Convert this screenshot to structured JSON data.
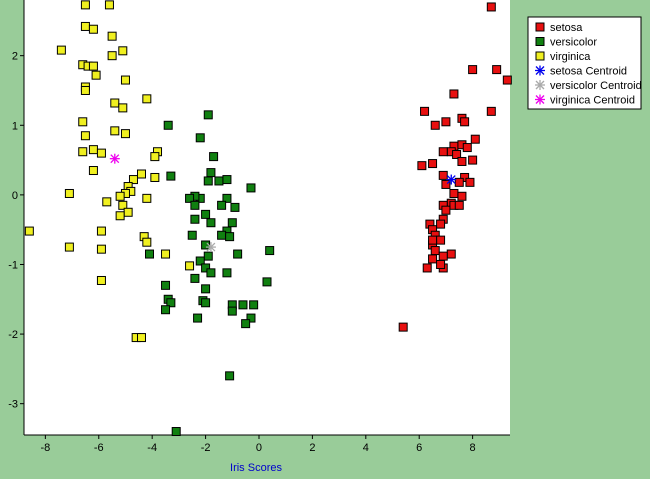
{
  "chart_data": {
    "type": "scatter",
    "title": "",
    "xlabel": "Iris Scores",
    "ylabel": "",
    "xlim": [
      -8.8,
      9.4
    ],
    "ylim": [
      -3.45,
      2.8
    ],
    "x_ticks": [
      -8,
      -6,
      -4,
      -2,
      0,
      2,
      4,
      6,
      8
    ],
    "y_ticks": [
      -3,
      -2,
      -1,
      0,
      1,
      2
    ],
    "grid": false,
    "legend_position": "top-right",
    "series": [
      {
        "name": "setosa",
        "color": "#e81010",
        "marker": "square",
        "points": [
          [
            8.7,
            2.7
          ],
          [
            8.0,
            1.8
          ],
          [
            8.9,
            1.8
          ],
          [
            9.3,
            1.65
          ],
          [
            7.3,
            1.45
          ],
          [
            6.2,
            1.2
          ],
          [
            8.7,
            1.2
          ],
          [
            7.0,
            1.05
          ],
          [
            6.6,
            1.0
          ],
          [
            7.6,
            1.1
          ],
          [
            7.7,
            1.05
          ],
          [
            8.1,
            0.8
          ],
          [
            7.3,
            0.7
          ],
          [
            7.6,
            0.72
          ],
          [
            7.8,
            0.68
          ],
          [
            7.2,
            0.62
          ],
          [
            7.4,
            0.58
          ],
          [
            6.9,
            0.62
          ],
          [
            8.0,
            0.5
          ],
          [
            6.1,
            0.42
          ],
          [
            6.5,
            0.45
          ],
          [
            7.6,
            0.48
          ],
          [
            6.9,
            0.28
          ],
          [
            7.7,
            0.25
          ],
          [
            7.5,
            0.18
          ],
          [
            7.9,
            0.18
          ],
          [
            7.0,
            0.15
          ],
          [
            7.3,
            0.02
          ],
          [
            7.6,
            -0.02
          ],
          [
            7.2,
            -0.12
          ],
          [
            7.3,
            -0.15
          ],
          [
            6.9,
            -0.15
          ],
          [
            7.5,
            -0.15
          ],
          [
            7.0,
            -0.22
          ],
          [
            6.9,
            -0.35
          ],
          [
            6.8,
            -0.42
          ],
          [
            6.4,
            -0.42
          ],
          [
            6.5,
            -0.5
          ],
          [
            6.6,
            -0.58
          ],
          [
            6.8,
            -0.65
          ],
          [
            6.5,
            -0.72
          ],
          [
            6.6,
            -0.8
          ],
          [
            7.2,
            -0.85
          ],
          [
            6.9,
            -0.88
          ],
          [
            6.5,
            -0.92
          ],
          [
            6.3,
            -1.05
          ],
          [
            6.9,
            -1.05
          ],
          [
            6.8,
            -1.0
          ],
          [
            5.4,
            -1.9
          ],
          [
            6.5,
            -0.65
          ]
        ]
      },
      {
        "name": "versicolor",
        "color": "#108010",
        "marker": "square",
        "points": [
          [
            -3.4,
            1.0
          ],
          [
            -1.9,
            1.15
          ],
          [
            -2.2,
            0.82
          ],
          [
            -1.7,
            0.55
          ],
          [
            -3.3,
            0.27
          ],
          [
            -1.8,
            0.32
          ],
          [
            -1.5,
            0.2
          ],
          [
            -1.2,
            0.22
          ],
          [
            -1.9,
            0.2
          ],
          [
            -0.3,
            0.1
          ],
          [
            -2.2,
            -0.05
          ],
          [
            -2.4,
            -0.02
          ],
          [
            -2.6,
            -0.05
          ],
          [
            -1.2,
            -0.05
          ],
          [
            -2.4,
            -0.15
          ],
          [
            -1.4,
            -0.15
          ],
          [
            -2.0,
            -0.28
          ],
          [
            -0.9,
            -0.18
          ],
          [
            -2.4,
            -0.35
          ],
          [
            -1.8,
            -0.4
          ],
          [
            -1.0,
            -0.4
          ],
          [
            -1.2,
            -0.52
          ],
          [
            -1.4,
            -0.58
          ],
          [
            -2.5,
            -0.58
          ],
          [
            -1.1,
            -0.6
          ],
          [
            -2.0,
            -0.72
          ],
          [
            0.4,
            -0.8
          ],
          [
            -0.8,
            -0.85
          ],
          [
            -1.9,
            -0.88
          ],
          [
            -2.2,
            -0.95
          ],
          [
            -2.0,
            -1.05
          ],
          [
            -1.8,
            -1.12
          ],
          [
            -1.2,
            -1.12
          ],
          [
            -4.1,
            -0.85
          ],
          [
            -2.4,
            -1.2
          ],
          [
            0.3,
            -1.25
          ],
          [
            -3.5,
            -1.3
          ],
          [
            -2.0,
            -1.35
          ],
          [
            -3.4,
            -1.5
          ],
          [
            -3.3,
            -1.55
          ],
          [
            -2.1,
            -1.52
          ],
          [
            -2.0,
            -1.55
          ],
          [
            -1.0,
            -1.58
          ],
          [
            -0.6,
            -1.58
          ],
          [
            -0.2,
            -1.58
          ],
          [
            -3.5,
            -1.65
          ],
          [
            -1.0,
            -1.67
          ],
          [
            -2.3,
            -1.77
          ],
          [
            -0.3,
            -1.77
          ],
          [
            -0.5,
            -1.85
          ],
          [
            -1.1,
            -2.6
          ],
          [
            -3.1,
            -3.4
          ]
        ]
      },
      {
        "name": "virginica",
        "color": "#f0f020",
        "marker": "square",
        "points": [
          [
            -6.5,
            2.73
          ],
          [
            -5.6,
            2.73
          ],
          [
            -6.5,
            2.42
          ],
          [
            -6.2,
            2.38
          ],
          [
            -5.5,
            2.28
          ],
          [
            -7.4,
            2.08
          ],
          [
            -5.1,
            2.07
          ],
          [
            -5.5,
            2.0
          ],
          [
            -6.6,
            1.87
          ],
          [
            -6.4,
            1.85
          ],
          [
            -6.2,
            1.85
          ],
          [
            -6.1,
            1.72
          ],
          [
            -5.0,
            1.65
          ],
          [
            -6.5,
            1.55
          ],
          [
            -6.5,
            1.5
          ],
          [
            -4.2,
            1.38
          ],
          [
            -5.4,
            1.32
          ],
          [
            -5.1,
            1.25
          ],
          [
            -6.6,
            1.05
          ],
          [
            -5.4,
            0.92
          ],
          [
            -5.0,
            0.88
          ],
          [
            -6.5,
            0.85
          ],
          [
            -6.2,
            0.65
          ],
          [
            -3.8,
            0.62
          ],
          [
            -6.6,
            0.62
          ],
          [
            -5.9,
            0.6
          ],
          [
            -3.9,
            0.55
          ],
          [
            -6.2,
            0.35
          ],
          [
            -4.4,
            0.3
          ],
          [
            -3.9,
            0.25
          ],
          [
            -4.7,
            0.22
          ],
          [
            -4.9,
            0.12
          ],
          [
            -4.8,
            0.05
          ],
          [
            -7.1,
            0.02
          ],
          [
            -5.0,
            0.02
          ],
          [
            -5.2,
            -0.02
          ],
          [
            -4.2,
            -0.05
          ],
          [
            -5.7,
            -0.1
          ],
          [
            -5.1,
            -0.15
          ],
          [
            -4.9,
            -0.25
          ],
          [
            -5.2,
            -0.3
          ],
          [
            -5.9,
            -0.52
          ],
          [
            -4.3,
            -0.6
          ],
          [
            -4.2,
            -0.68
          ],
          [
            -7.1,
            -0.75
          ],
          [
            -5.9,
            -0.78
          ],
          [
            -3.5,
            -0.85
          ],
          [
            -2.6,
            -1.02
          ],
          [
            -5.9,
            -1.23
          ],
          [
            -8.6,
            -0.52
          ],
          [
            -4.6,
            -2.05
          ],
          [
            -4.4,
            -2.05
          ]
        ]
      },
      {
        "name": "setosa Centroid",
        "color": "#0000ee",
        "marker": "star",
        "points": [
          [
            7.2,
            0.22
          ]
        ]
      },
      {
        "name": "versicolor Centroid",
        "color": "#aaaaaa",
        "marker": "star",
        "points": [
          [
            -1.8,
            -0.75
          ]
        ]
      },
      {
        "name": "virginica Centroid",
        "color": "#ee00ee",
        "marker": "star",
        "points": [
          [
            -5.4,
            0.52
          ]
        ]
      }
    ]
  }
}
